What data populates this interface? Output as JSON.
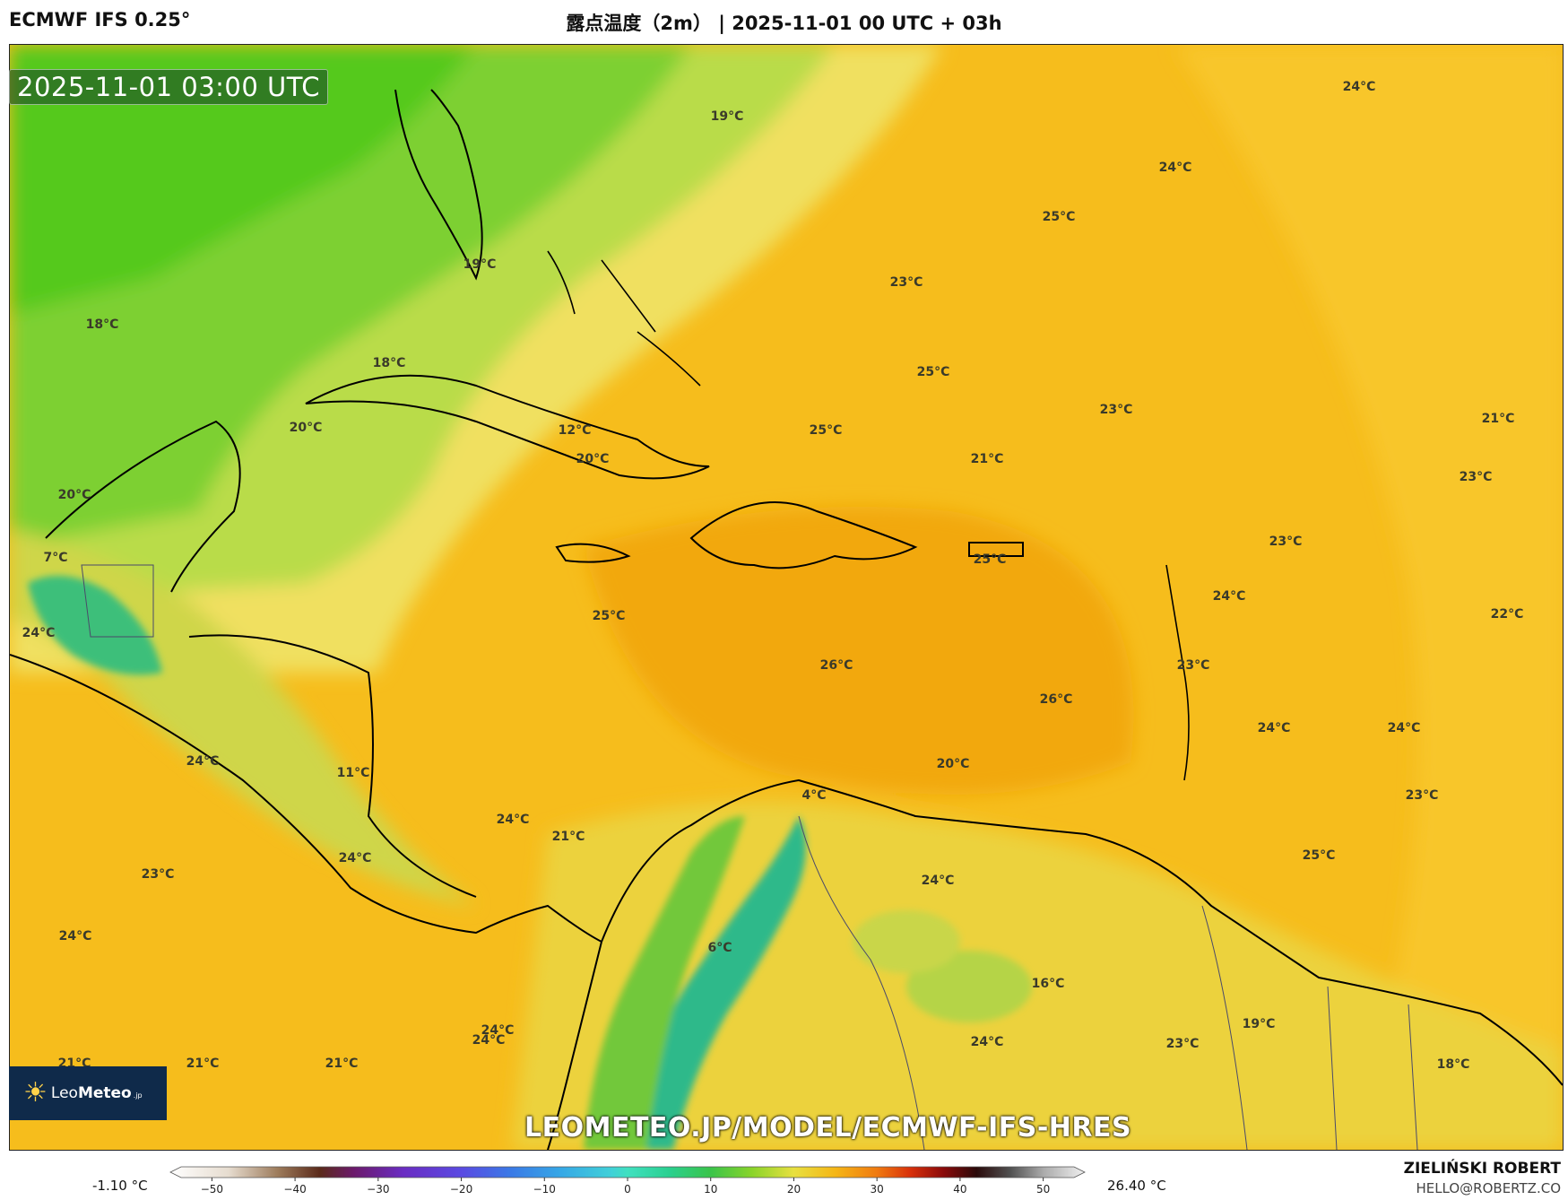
{
  "header": {
    "model_title": "ECMWF IFS 0.25°",
    "product_title": "露点温度（2m） | 2025-11-01 00 UTC + 03h"
  },
  "map": {
    "timestamp": "2025-11-01 03:00 UTC",
    "watermark": "LEOMETEO.JP/MODEL/ECMWF-IFS-HRES",
    "logo": {
      "prefix": "Leo",
      "bold": "Meteo",
      "suffix": ".jp"
    },
    "labels": [
      "19°C",
      "24°C",
      "24°C",
      "25°C",
      "19°C",
      "23°C",
      "18°C",
      "18°C",
      "25°C",
      "20°C",
      "23°C",
      "12°C",
      "25°C",
      "21°C",
      "20°C",
      "21°C",
      "20°C",
      "23°C",
      "7°C",
      "23°C",
      "25°C",
      "25°C",
      "24°C",
      "22°C",
      "24°C",
      "26°C",
      "23°C",
      "26°C",
      "24°C",
      "24°C",
      "24°C",
      "20°C",
      "11°C",
      "4°C",
      "23°C",
      "24°C",
      "21°C",
      "24°C",
      "25°C",
      "23°C",
      "24°C",
      "24°C",
      "6°C",
      "24°C",
      "16°C",
      "19°C",
      "24°C",
      "24°C",
      "23°C",
      "21°C",
      "21°C",
      "21°C",
      "18°C"
    ],
    "colors": {
      "warm_sea": "#f5b616",
      "warm_sea_2": "#f7c21e",
      "yellow_band": "#efe35c",
      "light_green": "#b8dc4a",
      "green": "#6fcd28",
      "bright_green": "#4fc81a",
      "teal_mountain": "#2ab88a",
      "coast": "#000000",
      "border": "#4a4a6a"
    }
  },
  "legend": {
    "min_label": "-1.10 °C",
    "max_label": "26.40 °C",
    "ticks": [
      "−50",
      "−40",
      "−30",
      "−20",
      "−10",
      "0",
      "10",
      "20",
      "30",
      "40",
      "50"
    ],
    "tick_values": [
      -50,
      -40,
      -30,
      -20,
      -10,
      0,
      10,
      20,
      30,
      40,
      50
    ],
    "range": [
      -55,
      55
    ]
  },
  "credit": {
    "author": "ZIELIŃSKI ROBERT",
    "email": "HELLO@ROBERTZ.CO"
  }
}
